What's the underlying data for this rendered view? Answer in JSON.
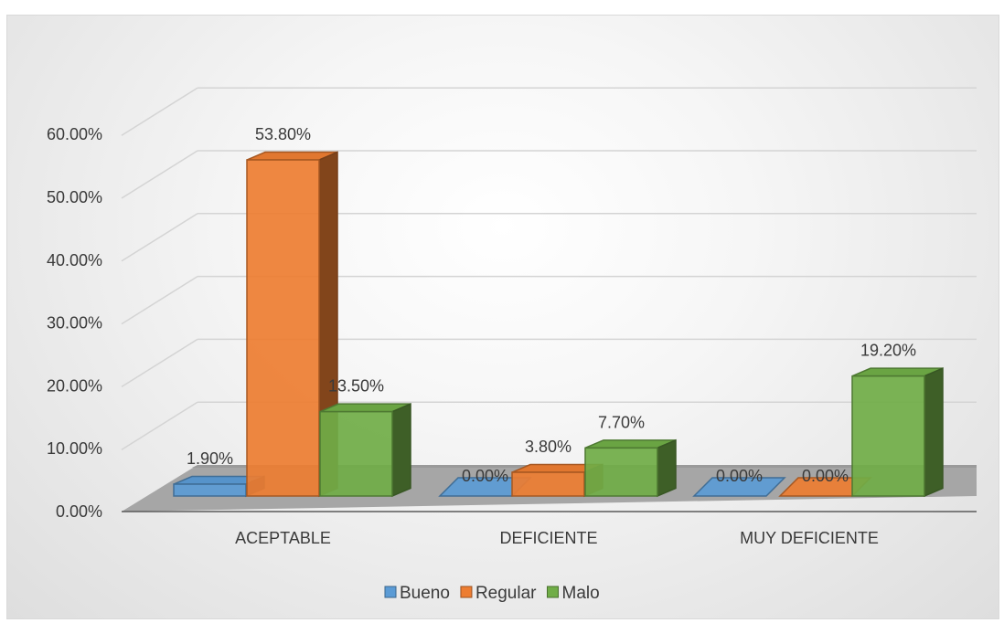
{
  "chart_data": {
    "type": "bar",
    "categories": [
      "ACEPTABLE",
      "DEFICIENTE",
      "MUY DEFICIENTE"
    ],
    "series": [
      {
        "name": "Bueno",
        "values": [
          1.9,
          0.0,
          0.0
        ],
        "labels": [
          "1.90%",
          "0.00%",
          "0.00%"
        ],
        "color": "#5b9bd5"
      },
      {
        "name": "Regular",
        "values": [
          53.8,
          3.8,
          0.0
        ],
        "labels": [
          "53.80%",
          "3.80%",
          "0.00%"
        ],
        "color": "#ed7d31"
      },
      {
        "name": "Malo",
        "values": [
          13.5,
          7.7,
          19.2
        ],
        "labels": [
          "13.50%",
          "7.70%",
          "19.20%"
        ],
        "color": "#70ad47"
      }
    ],
    "y_ticks": [
      "0.00%",
      "10.00%",
      "20.00%",
      "30.00%",
      "40.00%",
      "50.00%",
      "60.00%"
    ],
    "ylim": [
      0,
      60
    ],
    "legend_position": "bottom",
    "grid": true,
    "style": "3d-clustered-column"
  }
}
